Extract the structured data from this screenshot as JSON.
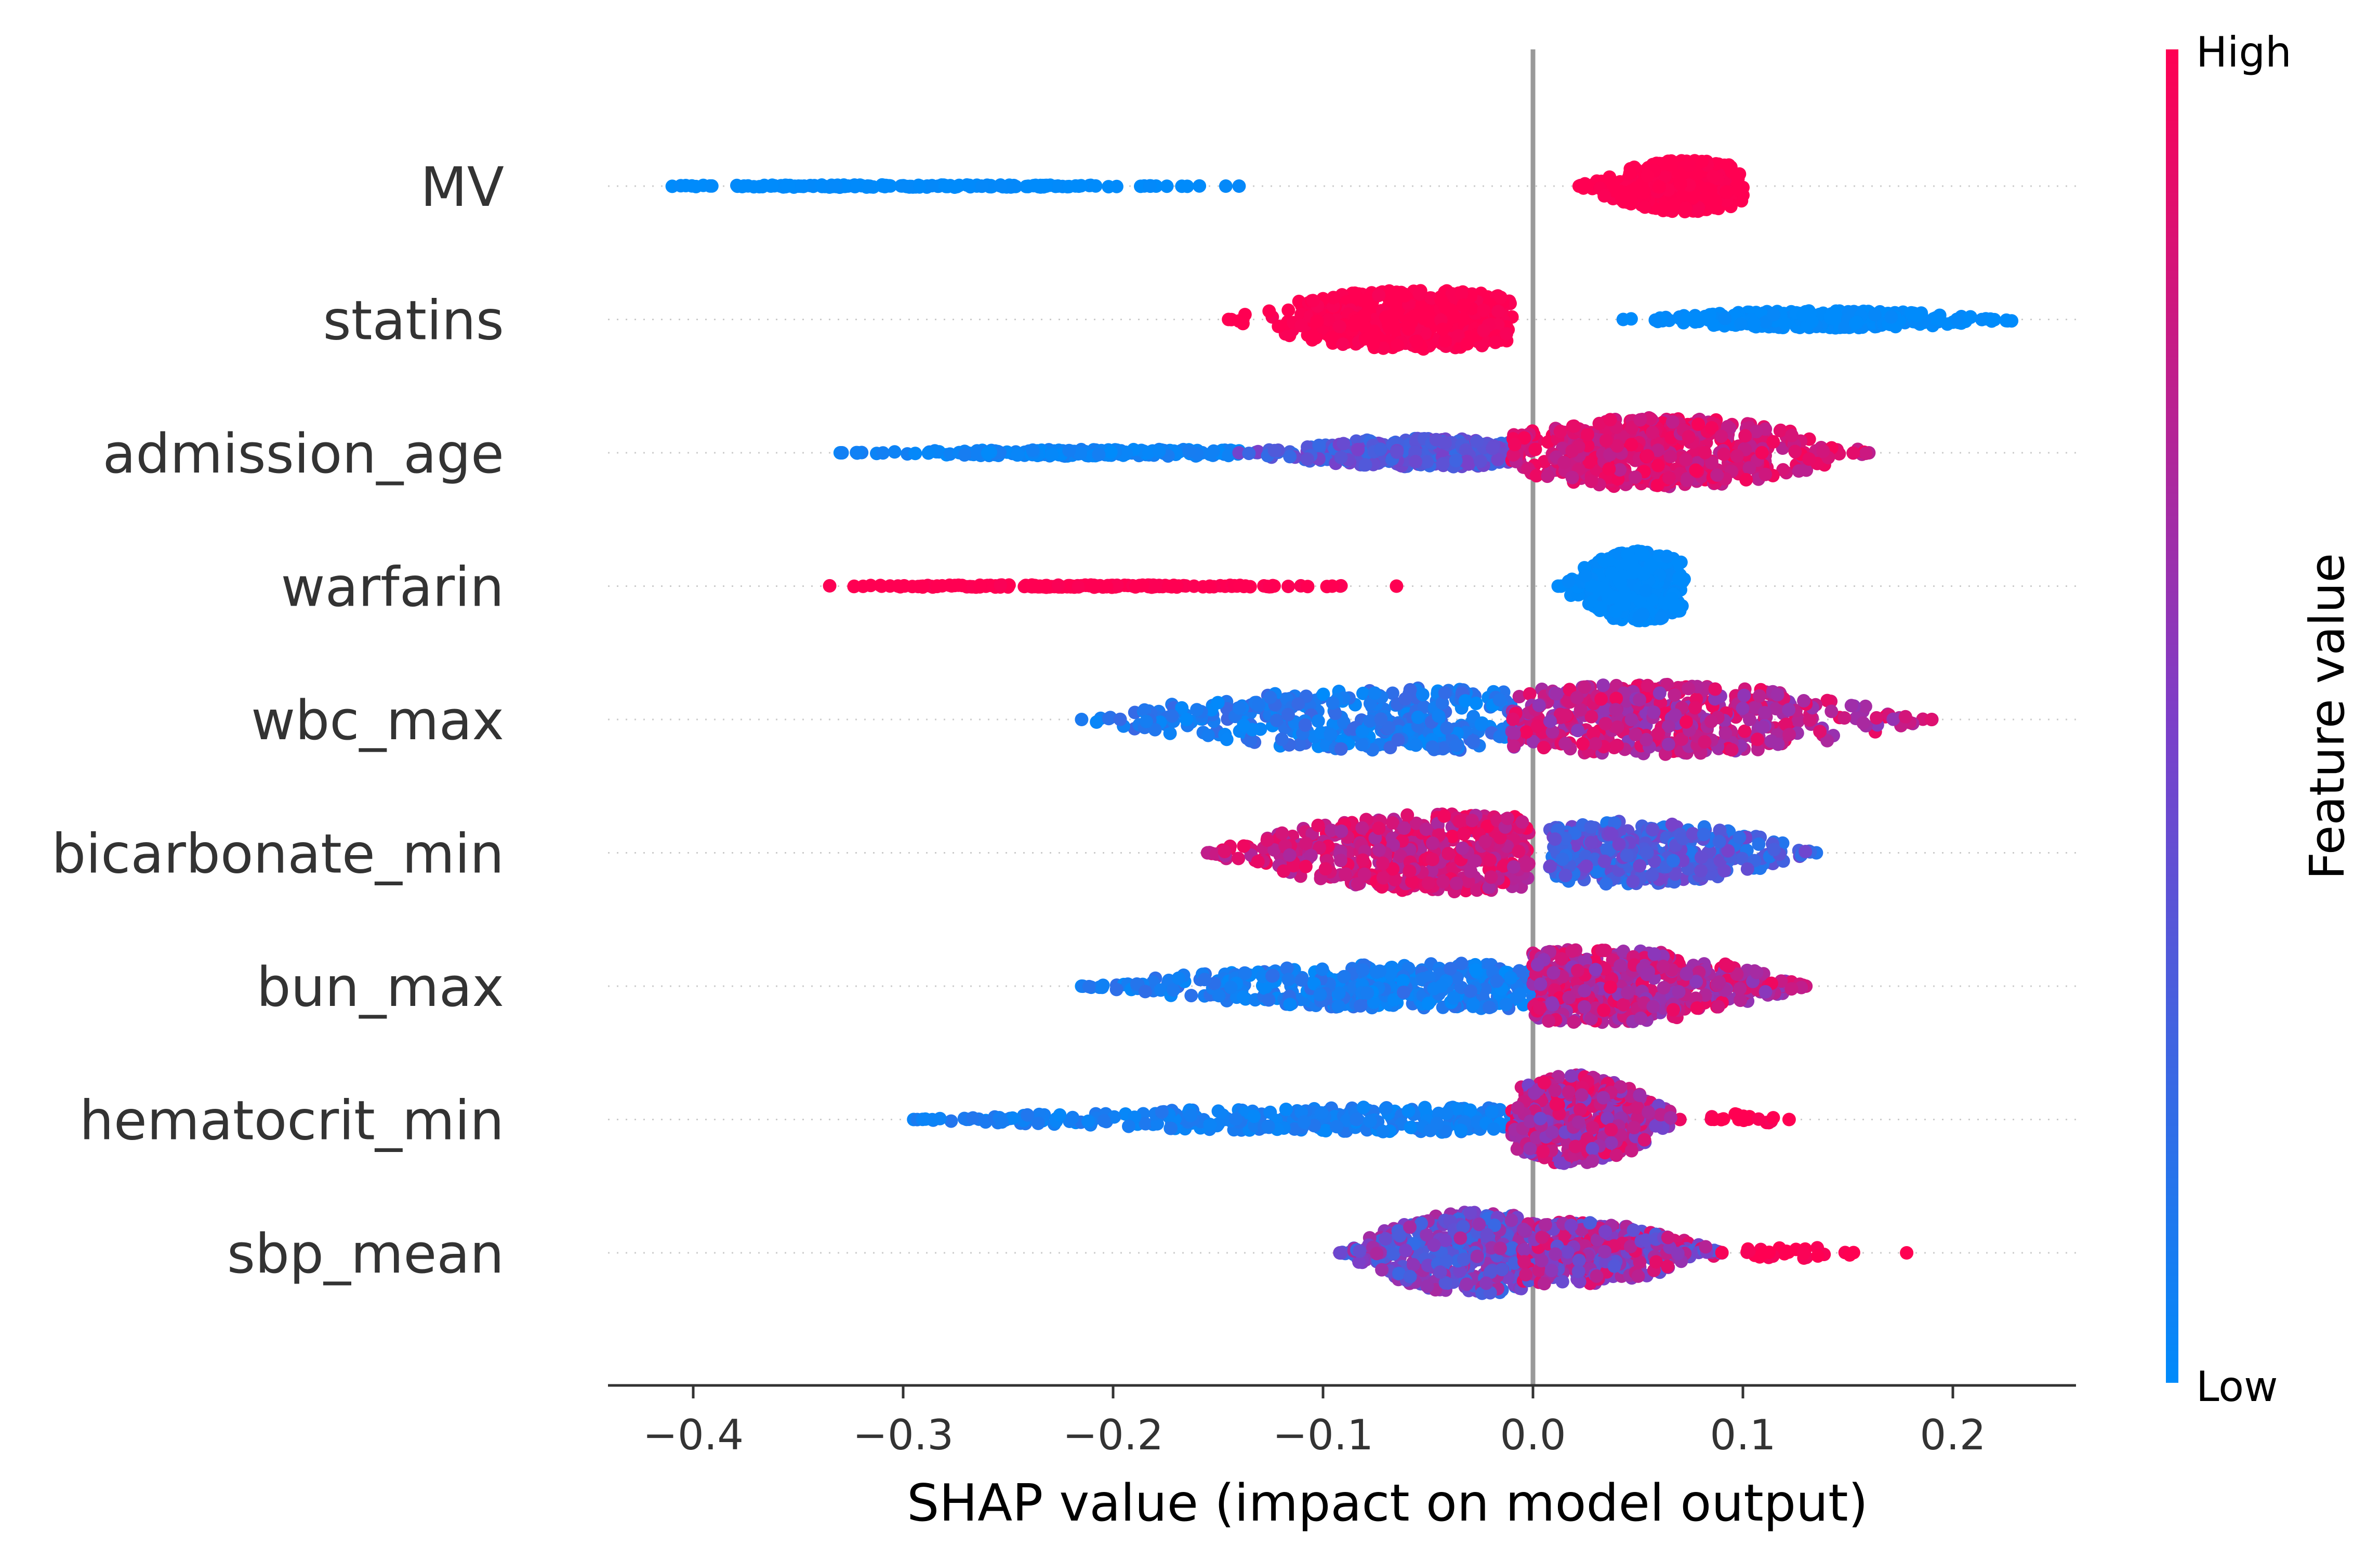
{
  "chart_data": {
    "type": "scatter",
    "subtype": "shap-beeswarm",
    "title": "",
    "xlabel": "SHAP value (impact on model output)",
    "ylabel": "",
    "xlim": [
      -0.44,
      0.26
    ],
    "xticks": [
      -0.4,
      -0.3,
      -0.2,
      -0.1,
      0.0,
      0.1,
      0.2
    ],
    "xtick_labels": [
      "−0.4",
      "−0.3",
      "−0.2",
      "−0.1",
      "0.0",
      "0.1",
      "0.2"
    ],
    "grid": false,
    "zero_line": true,
    "features": [
      {
        "name": "MV",
        "clusters": [
          {
            "lo": -0.41,
            "hi": -0.14,
            "center": -0.3,
            "width": 0.02,
            "value": 0.0,
            "spread": 0.02,
            "n": 170
          },
          {
            "lo": 0.022,
            "hi": 0.1,
            "center": 0.073,
            "width": 0.45,
            "value": 1.0,
            "spread": 0.02,
            "n": 420
          }
        ]
      },
      {
        "name": "statins",
        "clusters": [
          {
            "lo": -0.145,
            "hi": -0.01,
            "center": -0.055,
            "width": 0.52,
            "value": 1.0,
            "spread": 0.03,
            "n": 480
          },
          {
            "lo": 0.043,
            "hi": 0.228,
            "center": 0.14,
            "width": 0.15,
            "value": 0.0,
            "spread": 0.03,
            "n": 360
          }
        ]
      },
      {
        "name": "admission_age",
        "clusters": [
          {
            "lo": -0.33,
            "hi": -0.14,
            "center": -0.2,
            "width": 0.06,
            "value": 0.05,
            "spread": 0.05,
            "n": 220
          },
          {
            "lo": -0.14,
            "hi": -0.01,
            "center": -0.05,
            "width": 0.25,
            "value": 0.35,
            "spread": 0.15,
            "n": 300
          },
          {
            "lo": -0.01,
            "hi": 0.16,
            "center": 0.06,
            "width": 0.62,
            "value": 0.85,
            "spread": 0.12,
            "n": 520
          }
        ]
      },
      {
        "name": "warfarin",
        "clusters": [
          {
            "lo": -0.335,
            "hi": -0.065,
            "center": -0.22,
            "width": 0.02,
            "value": 1.0,
            "spread": 0.02,
            "n": 180
          },
          {
            "lo": 0.012,
            "hi": 0.072,
            "center": 0.05,
            "width": 0.62,
            "value": 0.0,
            "spread": 0.02,
            "n": 380
          }
        ]
      },
      {
        "name": "wbc_max",
        "clusters": [
          {
            "lo": -0.215,
            "hi": -0.01,
            "center": -0.06,
            "width": 0.55,
            "value": 0.12,
            "spread": 0.12,
            "n": 380
          },
          {
            "lo": -0.01,
            "hi": 0.19,
            "center": 0.055,
            "width": 0.62,
            "value": 0.75,
            "spread": 0.2,
            "n": 480
          }
        ]
      },
      {
        "name": "bicarbonate_min",
        "clusters": [
          {
            "lo": -0.155,
            "hi": -0.002,
            "center": -0.04,
            "width": 0.68,
            "value": 0.82,
            "spread": 0.15,
            "n": 480
          },
          {
            "lo": 0.008,
            "hi": 0.135,
            "center": 0.045,
            "width": 0.55,
            "value": 0.3,
            "spread": 0.18,
            "n": 380
          }
        ]
      },
      {
        "name": "bun_max",
        "clusters": [
          {
            "lo": -0.215,
            "hi": 0.0,
            "center": -0.04,
            "width": 0.4,
            "value": 0.1,
            "spread": 0.1,
            "n": 420
          },
          {
            "lo": 0.0,
            "hi": 0.13,
            "center": 0.03,
            "width": 0.65,
            "value": 0.75,
            "spread": 0.2,
            "n": 480
          }
        ]
      },
      {
        "name": "hematocrit_min",
        "clusters": [
          {
            "lo": -0.295,
            "hi": -0.01,
            "center": -0.04,
            "width": 0.22,
            "value": 0.08,
            "spread": 0.06,
            "n": 300
          },
          {
            "lo": -0.01,
            "hi": 0.07,
            "center": 0.02,
            "width": 0.78,
            "value": 0.7,
            "spread": 0.25,
            "n": 460
          },
          {
            "lo": 0.085,
            "hi": 0.122,
            "center": 0.1,
            "width": 0.1,
            "value": 1.0,
            "spread": 0.05,
            "n": 20
          }
        ]
      },
      {
        "name": "sbp_mean",
        "clusters": [
          {
            "lo": -0.092,
            "hi": -0.005,
            "center": -0.025,
            "width": 0.72,
            "value": 0.45,
            "spread": 0.25,
            "n": 420
          },
          {
            "lo": -0.005,
            "hi": 0.09,
            "center": 0.015,
            "width": 0.55,
            "value": 0.6,
            "spread": 0.3,
            "n": 380
          },
          {
            "lo": 0.09,
            "hi": 0.178,
            "center": 0.12,
            "width": 0.1,
            "value": 1.0,
            "spread": 0.04,
            "n": 30
          }
        ]
      }
    ]
  },
  "colorbar": {
    "label": "Feature value",
    "high_label": "High",
    "low_label": "Low",
    "low_color": "#008bfb",
    "mid_color": "#7d3ec8",
    "high_color": "#ff0052"
  },
  "colors": {
    "axis": "#333333",
    "zero_line": "#999999",
    "guide": "#cccccc",
    "text": "#333333"
  }
}
